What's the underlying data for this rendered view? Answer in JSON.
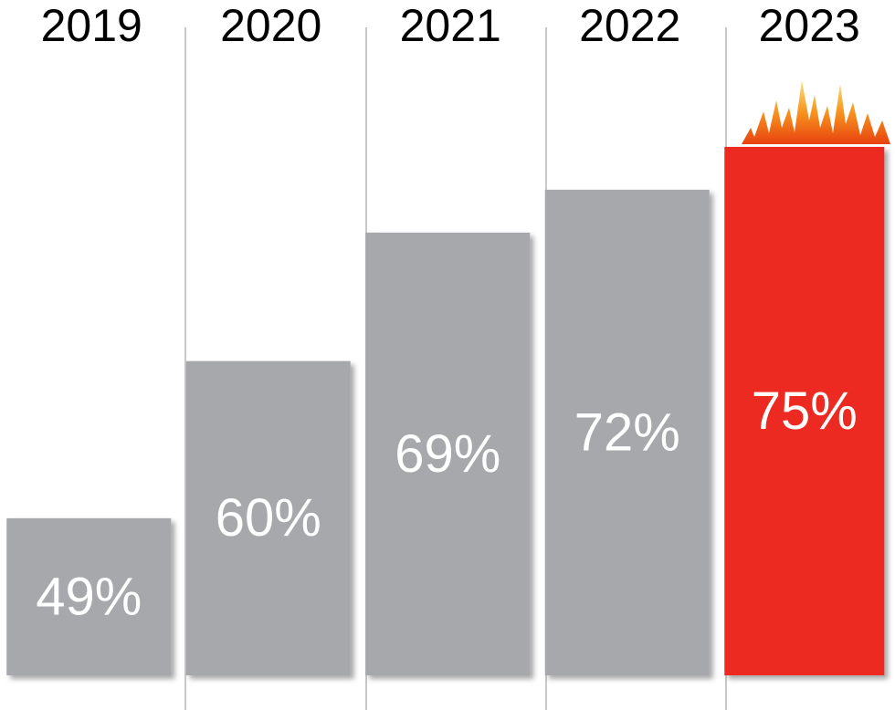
{
  "chart_data": {
    "type": "bar",
    "categories": [
      "2019",
      "2020",
      "2021",
      "2022",
      "2023"
    ],
    "values": [
      49,
      60,
      69,
      72,
      75
    ],
    "value_labels": [
      "49%",
      "60%",
      "69%",
      "72%",
      "75%"
    ],
    "colors": [
      "#a7a8ab",
      "#a7a8ab",
      "#a7a8ab",
      "#a7a8ab",
      "#ec2a22"
    ],
    "ylim": [
      38,
      78
    ]
  }
}
